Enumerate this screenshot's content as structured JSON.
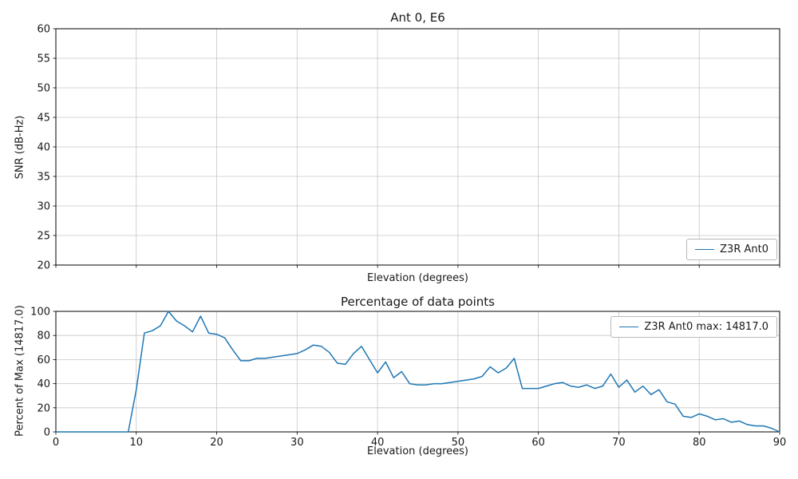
{
  "figure": {
    "background": "#ffffff",
    "line_color": "#1f77b4",
    "grid_color": "#c6c6c6",
    "spine_color": "#000000",
    "text_color": "#1a1a1a"
  },
  "chart_data": [
    {
      "type": "line",
      "title": "Ant 0, E6",
      "xlabel": "Elevation (degrees)",
      "ylabel": "SNR (dB-Hz)",
      "xlim": [
        0,
        90
      ],
      "ylim": [
        20,
        60
      ],
      "xticks": [
        0,
        10,
        20,
        30,
        40,
        50,
        60,
        70,
        80,
        90
      ],
      "yticks": [
        20,
        25,
        30,
        35,
        40,
        45,
        50,
        55,
        60
      ],
      "show_xtick_labels": false,
      "grid": true,
      "legend": {
        "position": "lower right",
        "entries": [
          {
            "label": "Z3R Ant0",
            "color": "#1f77b4"
          }
        ]
      },
      "series": [
        {
          "name": "Z3R Ant0",
          "x": [],
          "y": []
        }
      ]
    },
    {
      "type": "line",
      "title": "Percentage of data points",
      "xlabel": "Elevation (degrees)",
      "ylabel": "Percent of Max (14817.0)",
      "xlim": [
        0,
        90
      ],
      "ylim": [
        0,
        100
      ],
      "xticks": [
        0,
        10,
        20,
        30,
        40,
        50,
        60,
        70,
        80,
        90
      ],
      "yticks": [
        0,
        20,
        40,
        60,
        80,
        100
      ],
      "show_xtick_labels": true,
      "grid": true,
      "legend": {
        "position": "upper right",
        "entries": [
          {
            "label": "Z3R Ant0 max: 14817.0",
            "color": "#1f77b4"
          }
        ]
      },
      "series": [
        {
          "name": "Z3R Ant0 max: 14817.0",
          "x": [
            0,
            1,
            2,
            3,
            4,
            5,
            6,
            7,
            8,
            9,
            10,
            11,
            12,
            13,
            14,
            15,
            16,
            17,
            18,
            19,
            20,
            21,
            22,
            23,
            24,
            25,
            26,
            27,
            28,
            29,
            30,
            31,
            32,
            33,
            34,
            35,
            36,
            37,
            38,
            39,
            40,
            41,
            42,
            43,
            44,
            45,
            46,
            47,
            48,
            49,
            50,
            51,
            52,
            53,
            54,
            55,
            56,
            57,
            58,
            59,
            60,
            61,
            62,
            63,
            64,
            65,
            66,
            67,
            68,
            69,
            70,
            71,
            72,
            73,
            74,
            75,
            76,
            77,
            78,
            79,
            80,
            81,
            82,
            83,
            84,
            85,
            86,
            87,
            88,
            89,
            90
          ],
          "y": [
            0,
            0,
            0,
            0,
            0,
            0,
            0,
            0,
            0,
            0,
            35,
            82,
            84,
            88,
            100,
            92,
            88,
            83,
            96,
            82,
            81,
            78,
            68,
            59,
            59,
            61,
            61,
            62,
            63,
            64,
            65,
            68,
            72,
            71,
            66,
            57,
            56,
            65,
            71,
            60,
            49,
            58,
            45,
            50,
            40,
            39,
            39,
            40,
            40,
            41,
            42,
            43,
            44,
            46,
            54,
            49,
            53,
            61,
            36,
            36,
            36,
            38,
            40,
            41,
            38,
            37,
            39,
            36,
            38,
            48,
            37,
            43,
            33,
            38,
            31,
            35,
            25,
            23,
            13,
            12,
            15,
            13,
            10,
            11,
            8,
            9,
            6,
            5,
            5,
            3,
            0
          ]
        }
      ]
    }
  ]
}
